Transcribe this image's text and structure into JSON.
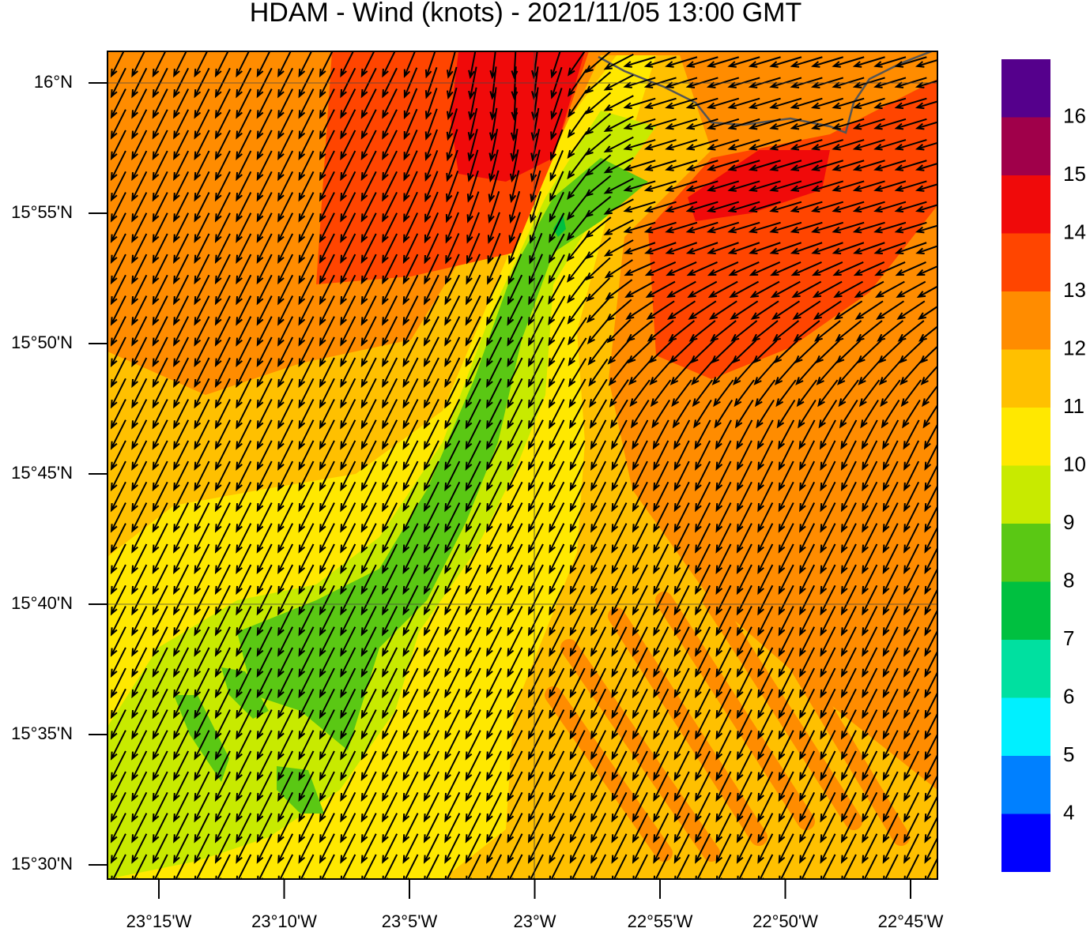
{
  "title": "HDAM - Wind (knots)  -  2021/11/05  13:00 GMT",
  "map": {
    "lat_labels": [
      "16°N",
      "15°55'N",
      "15°50'N",
      "15°45'N",
      "15°40'N",
      "15°35'N",
      "15°30'N"
    ],
    "lon_labels": [
      "23°15'W",
      "23°10'W",
      "23°5'W",
      "23°W",
      "22°55'W",
      "22°50'W",
      "22°45'W"
    ]
  },
  "colorbar": {
    "labels": [
      4,
      5,
      6,
      7,
      8,
      9,
      10,
      11,
      12,
      13,
      14,
      15,
      16
    ],
    "colors": [
      "#0000ff",
      "#0080ff",
      "#00f0ff",
      "#00e0a0",
      "#00c040",
      "#5ac814",
      "#c8ea00",
      "#ffe800",
      "#ffc000",
      "#ff8c00",
      "#ff4500",
      "#f00a0a",
      "#a0004a",
      "#55008c"
    ]
  }
}
